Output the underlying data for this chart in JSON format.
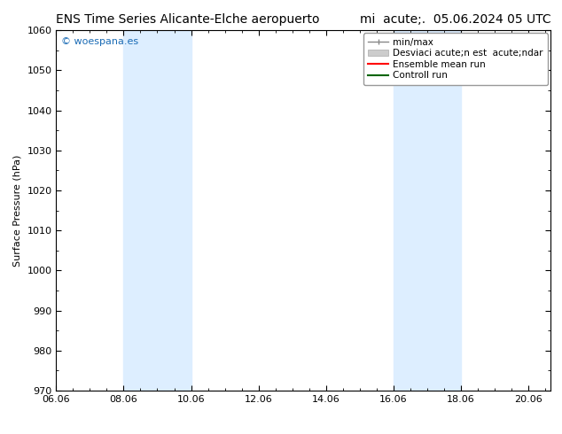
{
  "title_left": "ENS Time Series Alicante-Elche aeropuerto",
  "title_right": "mi  acute;.  05.06.2024 05 UTC",
  "ylabel": "Surface Pressure (hPa)",
  "ylim": [
    970,
    1060
  ],
  "yticks": [
    970,
    980,
    990,
    1000,
    1010,
    1020,
    1030,
    1040,
    1050,
    1060
  ],
  "x_dates": [
    "06.06",
    "08.06",
    "10.06",
    "12.06",
    "14.06",
    "16.06",
    "18.06",
    "20.06"
  ],
  "x_positions": [
    0.0,
    2.0,
    4.0,
    6.0,
    8.0,
    10.0,
    12.0,
    14.0
  ],
  "xlim": [
    0.0,
    14.67
  ],
  "shaded_bands": [
    {
      "x_start": 2.0,
      "x_end": 4.0,
      "color": "#ddeeff"
    },
    {
      "x_start": 10.0,
      "x_end": 12.0,
      "color": "#ddeeff"
    }
  ],
  "watermark": "© woespana.es",
  "watermark_color": "#1a6bb5",
  "bg_color": "#ffffff",
  "legend_label_minmax": "min/max",
  "legend_label_std": "Desviaci acute;n est  acute;ndar",
  "legend_label_ens": "Ensemble mean run",
  "legend_label_ctrl": "Controll run",
  "title_fontsize": 10,
  "legend_fontsize": 7.5,
  "tick_fontsize": 8,
  "ylabel_fontsize": 8
}
